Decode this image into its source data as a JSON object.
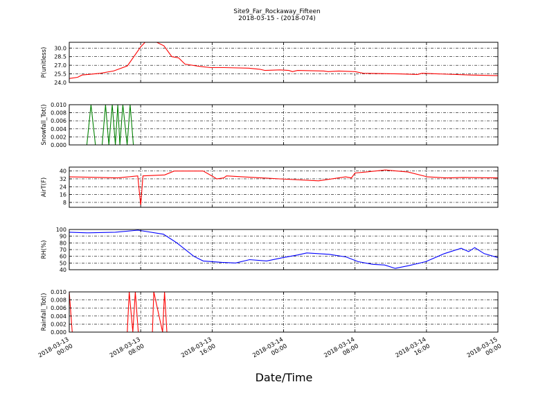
{
  "figure": {
    "title_line1": "Site9_Far_Rockaway_Fifteen",
    "title_line2": "2018-03-15 - (2018-074)",
    "xlabel": "Date/Time",
    "x_ticks": [
      {
        "line1": "2018-03-13",
        "line2": "00:00"
      },
      {
        "line1": "2018-03-13",
        "line2": "08:00"
      },
      {
        "line1": "2018-03-13",
        "line2": "16:00"
      },
      {
        "line1": "2018-03-14",
        "line2": "00:00"
      },
      {
        "line1": "2018-03-14",
        "line2": "08:00"
      },
      {
        "line1": "2018-03-14",
        "line2": "16:00"
      },
      {
        "line1": "2018-03-15",
        "line2": "00:00"
      }
    ],
    "x_range": [
      "2018-03-13 00:00",
      "2018-03-15 00:00"
    ]
  },
  "chart_data": [
    {
      "type": "line",
      "ylabel": "P(unitless)",
      "ylim": [
        24.0,
        31.0
      ],
      "yticks": [
        "24.0",
        "25.5",
        "27.0",
        "28.5",
        "30.0"
      ],
      "grid": true,
      "color": "#ff0000",
      "x": [
        "2018-03-13 00:00",
        "2018-03-13 00:56",
        "2018-03-13 01:26",
        "2018-03-13 03:29",
        "2018-03-13 04:58",
        "2018-03-13 06:31",
        "2018-03-13 08:00",
        "2018-03-13 08:37",
        "2018-03-13 09:40",
        "2018-03-13 10:36",
        "2018-03-13 11:29",
        "2018-03-13 12:14",
        "2018-03-13 12:58",
        "2018-03-13 14:38",
        "2018-03-13 15:48",
        "2018-03-13 17:19",
        "2018-03-13 20:05",
        "2018-03-13 21:20",
        "2018-03-13 21:55",
        "2018-03-13 23:35",
        "2018-03-14 00:35",
        "2018-03-14 01:00",
        "2018-03-14 01:34",
        "2018-03-14 04:31",
        "2018-03-14 04:59",
        "2018-03-14 06:11",
        "2018-03-14 08:00",
        "2018-03-14 08:56",
        "2018-03-14 12:55",
        "2018-03-14 15:00",
        "2018-03-14 15:30",
        "2018-03-14 20:55",
        "2018-03-15 00:00"
      ],
      "values": [
        24.7,
        24.9,
        25.3,
        25.6,
        26.0,
        26.9,
        30.2,
        31.2,
        31.1,
        30.4,
        28.5,
        28.3,
        27.2,
        26.8,
        26.6,
        26.6,
        26.5,
        26.3,
        26.1,
        26.2,
        26.1,
        25.9,
        26.1,
        26.0,
        25.9,
        26.0,
        25.9,
        25.6,
        25.5,
        25.4,
        25.6,
        25.3,
        25.2
      ]
    },
    {
      "type": "line",
      "ylabel": "Snowfall_Tot()",
      "ylim": [
        0.0,
        0.01
      ],
      "yticks": [
        "0.000",
        "0.002",
        "0.004",
        "0.006",
        "0.008",
        "0.010"
      ],
      "grid": true,
      "color": "#008000",
      "x": [
        "2018-03-13 00:00",
        "2018-03-13 01:58",
        "2018-03-13 02:26",
        "2018-03-13 02:56",
        "2018-03-13 03:41",
        "2018-03-13 04:04",
        "2018-03-13 04:26",
        "2018-03-13 04:49",
        "2018-03-13 05:10",
        "2018-03-13 05:26",
        "2018-03-13 05:40",
        "2018-03-13 06:00",
        "2018-03-13 06:29",
        "2018-03-13 06:49",
        "2018-03-13 07:11",
        "2018-03-13 15:00",
        "2018-03-15 00:00"
      ],
      "values": [
        0.0,
        0.0,
        0.01,
        0.0,
        0.0,
        0.01,
        0.0,
        0.01,
        0.0,
        0.01,
        0.0,
        0.01,
        0.0,
        0.01,
        0.0,
        0.0,
        0.0
      ]
    },
    {
      "type": "line",
      "ylabel": "AirT(F)",
      "ylim": [
        3,
        44
      ],
      "yticks": [
        "8",
        "16",
        "24",
        "32",
        "40"
      ],
      "grid": true,
      "color": "#ff0000",
      "x": [
        "2018-03-13 00:00",
        "2018-03-13 03:29",
        "2018-03-13 05:25",
        "2018-03-13 07:40",
        "2018-03-13 08:00",
        "2018-03-13 08:15",
        "2018-03-13 10:41",
        "2018-03-13 11:45",
        "2018-03-13 15:00",
        "2018-03-13 16:09",
        "2018-03-13 16:30",
        "2018-03-13 17:19",
        "2018-03-13 17:36",
        "2018-03-13 23:34",
        "2018-03-14 03:55",
        "2018-03-14 06:57",
        "2018-03-14 07:36",
        "2018-03-14 08:00",
        "2018-03-14 09:14",
        "2018-03-14 11:24",
        "2018-03-14 13:56",
        "2018-03-14 16:07",
        "2018-03-14 18:18",
        "2018-03-14 20:05",
        "2018-03-15 00:00"
      ],
      "values": [
        34,
        33.5,
        33,
        35,
        5,
        35,
        36,
        40,
        40,
        34,
        32,
        33,
        35,
        32,
        30,
        34,
        33,
        38,
        39,
        41,
        39,
        34,
        33,
        33.5,
        33
      ]
    },
    {
      "type": "line",
      "ylabel": "RH(%)",
      "ylim": [
        40,
        100
      ],
      "yticks": [
        "40",
        "50",
        "60",
        "70",
        "80",
        "90",
        "100"
      ],
      "grid": true,
      "color": "#0000ff",
      "x": [
        "2018-03-13 00:00",
        "2018-03-13 02:00",
        "2018-03-13 05:09",
        "2018-03-13 07:42",
        "2018-03-13 10:33",
        "2018-03-13 12:03",
        "2018-03-13 13:57",
        "2018-03-13 15:00",
        "2018-03-13 17:06",
        "2018-03-13 18:38",
        "2018-03-13 20:12",
        "2018-03-13 22:06",
        "2018-03-13 23:56",
        "2018-03-14 01:36",
        "2018-03-14 02:36",
        "2018-03-14 05:06",
        "2018-03-14 07:00",
        "2018-03-14 08:21",
        "2018-03-14 10:00",
        "2018-03-14 11:19",
        "2018-03-14 12:30",
        "2018-03-14 14:00",
        "2018-03-14 15:55",
        "2018-03-14 18:00",
        "2018-03-14 19:53",
        "2018-03-14 20:43",
        "2018-03-14 21:24",
        "2018-03-14 22:28",
        "2018-03-15 00:00"
      ],
      "values": [
        96,
        95,
        96,
        99,
        93,
        80,
        60,
        53,
        51,
        50,
        55,
        53,
        58,
        62,
        65,
        63,
        59,
        52,
        48,
        47,
        42,
        46,
        52,
        64,
        72,
        67,
        73,
        64,
        58
      ]
    },
    {
      "type": "line",
      "ylabel": "Rainfall_Tot()",
      "ylim": [
        0.0,
        0.01
      ],
      "yticks": [
        "0.000",
        "0.002",
        "0.004",
        "0.006",
        "0.008",
        "0.010"
      ],
      "grid": true,
      "color": "#ff0000",
      "x": [
        "2018-03-13 00:00",
        "2018-03-13 00:20",
        "2018-03-13 06:30",
        "2018-03-13 06:43",
        "2018-03-13 07:07",
        "2018-03-13 07:24",
        "2018-03-13 07:44",
        "2018-03-13 09:19",
        "2018-03-13 09:28",
        "2018-03-13 10:27",
        "2018-03-13 10:40",
        "2018-03-13 10:56",
        "2018-03-15 00:00"
      ],
      "values": [
        0.01,
        0.0,
        0.0,
        0.01,
        0.0,
        0.01,
        0.0,
        0.0,
        0.01,
        0.0,
        0.01,
        0.0,
        0.0
      ]
    }
  ]
}
